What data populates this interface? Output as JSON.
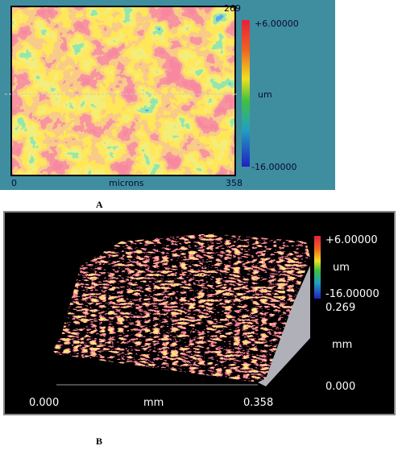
{
  "panel_a": {
    "top_right": "269",
    "scale_max": "+6.00000",
    "unit": "um",
    "scale_min": "-16.00000",
    "x_start": "0",
    "x_label": "microns",
    "x_end": "358",
    "label": "A"
  },
  "panel_b": {
    "scale_max": "+6.00000",
    "unit": "um",
    "scale_min": "-16.00000",
    "y_end": "0.269",
    "y_label": "mm",
    "y_start": "0.000",
    "x_start": "0.000",
    "x_label": "mm",
    "x_end": "0.358",
    "label": "B"
  }
}
